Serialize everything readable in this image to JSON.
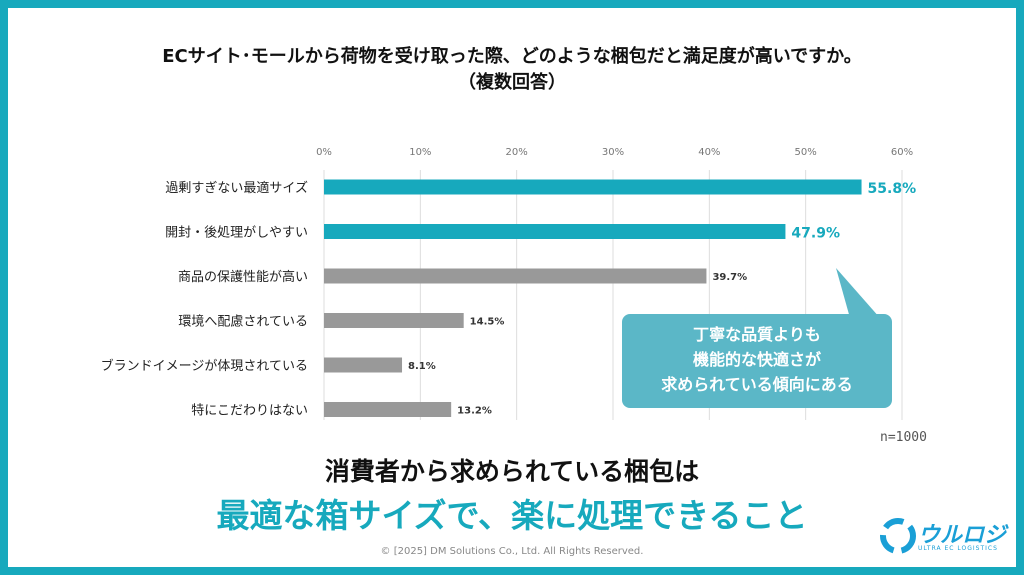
{
  "title_line1": "ECサイト･モールから荷物を受け取った際、どのような梱包だと満足度が高いですか。",
  "title_line2": "（複数回答）",
  "sample_size": "n=1000",
  "callout": {
    "lines": [
      "丁寧な品質よりも",
      "機能的な快適さが",
      "求められている傾向にある"
    ]
  },
  "headline1": "消費者から求められている梱包は",
  "headline2": "最適な箱サイズで、楽に処理できること",
  "copyright": "© [2025] DM Solutions Co., Ltd. All Rights Reserved.",
  "logo": {
    "name": "ウルロジ",
    "sub": "ULTRA EC LOGISTICS"
  },
  "colors": {
    "accent": "#17a9bd",
    "gray": "#999999",
    "callout": "#5bb7c7"
  },
  "chart_data": {
    "type": "bar",
    "orientation": "horizontal",
    "categories": [
      "過剰すぎない最適サイズ",
      "開封・後処理がしやすい",
      "商品の保護性能が高い",
      "環境へ配慮されている",
      "ブランドイメージが体現されている",
      "特にこだわりはない"
    ],
    "values": [
      55.8,
      47.9,
      39.7,
      14.5,
      8.1,
      13.2
    ],
    "value_labels": [
      "55.8%",
      "47.9%",
      "39.7%",
      "14.5%",
      "8.1%",
      "13.2%"
    ],
    "highlight": [
      true,
      true,
      false,
      false,
      false,
      false
    ],
    "xlim": [
      0,
      60
    ],
    "ticks": [
      "0%",
      "10%",
      "20%",
      "30%",
      "40%",
      "50%",
      "60%"
    ],
    "grid": true
  }
}
